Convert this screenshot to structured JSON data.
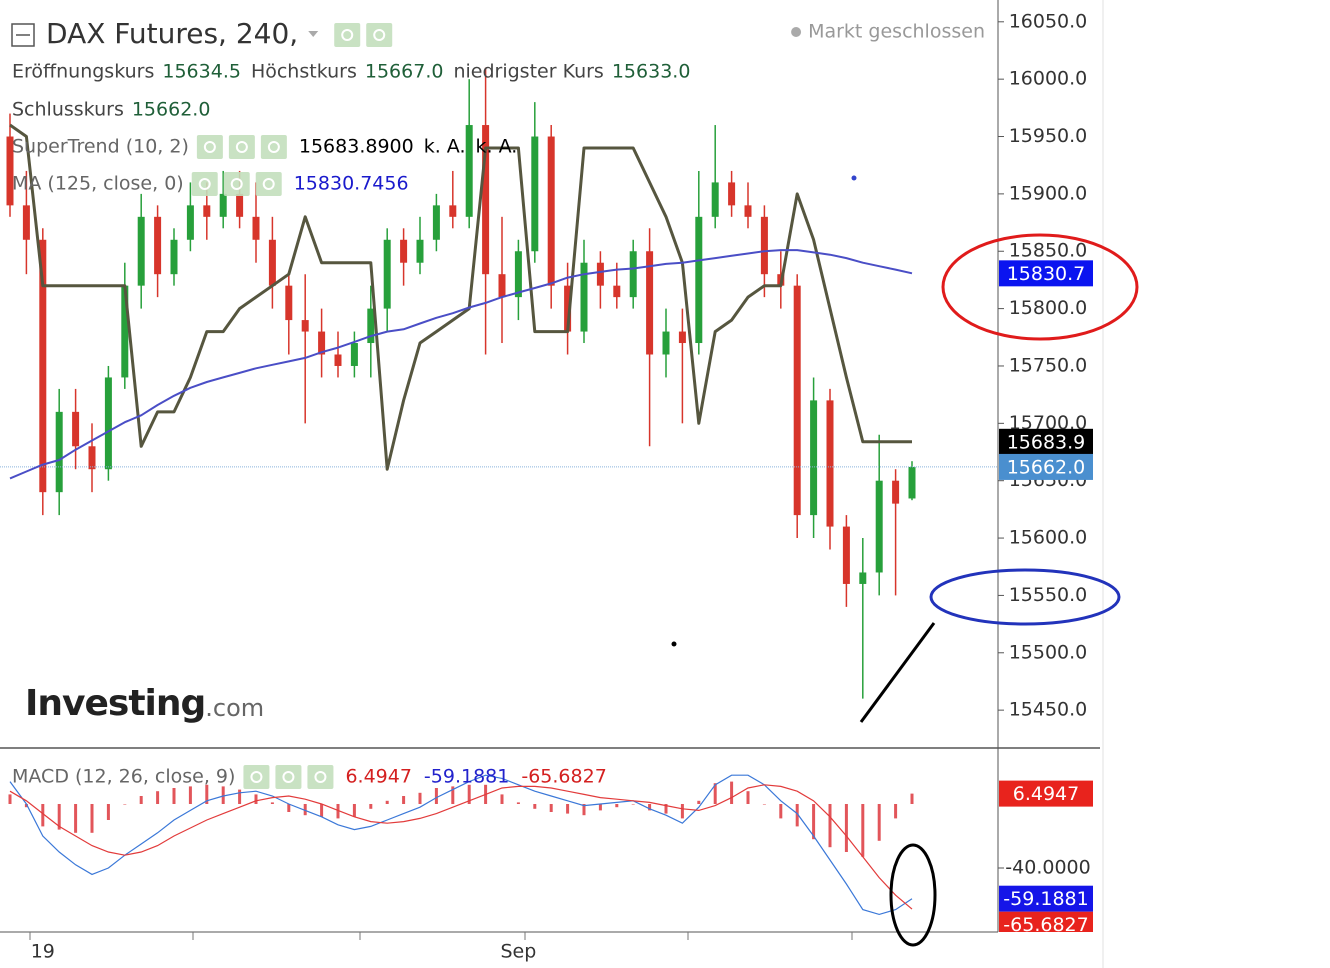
{
  "chart_data": [
    {
      "type": "candlestick",
      "title": "DAX Futures, 240,",
      "status": "Markt geschlossen",
      "ohlc_legend": [
        {
          "label": "Eröffnungskurs",
          "value": "15634.5"
        },
        {
          "label": "Höchstkurs",
          "value": "15667.0"
        },
        {
          "label": "niedrigster Kurs",
          "value": "15633.0"
        },
        {
          "label": "Schlusskurs",
          "value": "15662.0"
        }
      ],
      "categories": [
        null,
        null,
        "19",
        null,
        null,
        null,
        null,
        null,
        null,
        null,
        null,
        null,
        null,
        null,
        null,
        null,
        null,
        null,
        null,
        null,
        null,
        null,
        null,
        null,
        null,
        null,
        null,
        null,
        null,
        null,
        null,
        "Sep",
        null,
        null,
        null,
        null,
        null,
        null,
        null,
        null,
        null,
        null,
        null,
        null,
        null,
        null,
        null,
        null,
        null,
        null,
        null,
        null,
        null,
        null,
        null,
        null
      ],
      "open": [
        15950,
        15890,
        15860,
        15640,
        15710,
        15680,
        15660,
        15740,
        15820,
        15880,
        15830,
        15860,
        15890,
        15880,
        15900,
        15880,
        15860,
        15820,
        15790,
        15780,
        15760,
        15750,
        15770,
        15800,
        15860,
        15840,
        15860,
        15890,
        15880,
        15960,
        15830,
        15810,
        15850,
        15950,
        15820,
        15780,
        15840,
        15820,
        15810,
        15850,
        15760,
        15780,
        15770,
        15880,
        15910,
        15890,
        15880,
        15830,
        15820,
        15620,
        15720,
        15610,
        15560,
        15570,
        15650,
        15634.5
      ],
      "high": [
        15970,
        15920,
        15870,
        15730,
        15730,
        15700,
        15750,
        15840,
        15900,
        15890,
        15870,
        15910,
        15910,
        15920,
        15920,
        15910,
        15880,
        15830,
        15830,
        15800,
        15780,
        15780,
        15820,
        15870,
        15870,
        15880,
        15900,
        15920,
        16000,
        16010,
        15880,
        15860,
        15980,
        15960,
        15840,
        15860,
        15850,
        15840,
        15860,
        15870,
        15800,
        15800,
        15920,
        15960,
        15920,
        15910,
        15890,
        15850,
        15830,
        15740,
        15730,
        15620,
        15600,
        15690,
        15660,
        15667
      ],
      "low": [
        15880,
        15830,
        15620,
        15620,
        15660,
        15640,
        15650,
        15730,
        15800,
        15810,
        15820,
        15850,
        15860,
        15870,
        15870,
        15840,
        15800,
        15760,
        15700,
        15740,
        15740,
        15740,
        15740,
        15780,
        15820,
        15830,
        15850,
        15870,
        15870,
        15760,
        15770,
        15790,
        15840,
        15800,
        15760,
        15770,
        15800,
        15800,
        15800,
        15680,
        15740,
        15700,
        15760,
        15870,
        15880,
        15870,
        15810,
        15800,
        15600,
        15600,
        15590,
        15540,
        15460,
        15550,
        15550,
        15633
      ],
      "close": [
        15890,
        15860,
        15640,
        15710,
        15680,
        15660,
        15740,
        15820,
        15880,
        15830,
        15860,
        15890,
        15880,
        15900,
        15880,
        15860,
        15820,
        15790,
        15780,
        15760,
        15750,
        15770,
        15800,
        15860,
        15840,
        15860,
        15890,
        15880,
        15960,
        15830,
        15810,
        15850,
        15950,
        15820,
        15780,
        15840,
        15820,
        15810,
        15850,
        15760,
        15780,
        15770,
        15880,
        15910,
        15890,
        15880,
        15830,
        15820,
        15620,
        15720,
        15610,
        15560,
        15570,
        15650,
        15630,
        15662
      ],
      "up_color": "#27a03b",
      "down_color": "#d7352b",
      "close_axis_label": "15662.0",
      "close_axis_color": "#4a8fcf",
      "series": [
        {
          "name": "SuperTrend (10, 2)",
          "color": "#56563f",
          "values": [
            15960,
            15950,
            15820,
            15820,
            15820,
            15820,
            15820,
            15820,
            15680,
            15710,
            15710,
            15740,
            15780,
            15780,
            15800,
            15810,
            15820,
            15830,
            15880,
            15840,
            15840,
            15840,
            15840,
            15660,
            15720,
            15770,
            15780,
            15790,
            15800,
            15940,
            15940,
            15940,
            15780,
            15780,
            15780,
            15940,
            15940,
            15940,
            15940,
            15910,
            15880,
            15840,
            15700,
            15780,
            15790,
            15810,
            15820,
            15820,
            15900,
            15860,
            15800,
            15740,
            15684,
            15684,
            15684,
            15683.89
          ],
          "last_label": "15683.8900",
          "extra_labels": [
            "k. A.",
            "k. A."
          ],
          "axis_label": "15683.9",
          "axis_color": "#000000",
          "text_color": "#000000"
        },
        {
          "name": "MA (125, close, 0)",
          "color": "#4a4ec6",
          "values": [
            15652,
            15658,
            15664,
            15668,
            15677,
            15685,
            15693,
            15701,
            15707,
            15716,
            15724,
            15731,
            15736,
            15740,
            15744,
            15748,
            15751,
            15754,
            15757,
            15762,
            15766,
            15771,
            15776,
            15780,
            15782,
            15787,
            15792,
            15796,
            15801,
            15805,
            15810,
            15814,
            15818,
            15822,
            15827,
            15830,
            15832,
            15834,
            15835,
            15837,
            15839,
            15840,
            15842,
            15844,
            15846,
            15848,
            15850,
            15851,
            15851,
            15849,
            15847,
            15844,
            15840,
            15837,
            15834,
            15830.7456
          ],
          "axis_label": "15830.7",
          "axis_color": "#0a14f0",
          "text_color": "#1a1acc"
        }
      ],
      "ylim": [
        15417,
        16069
      ],
      "yticks": [
        {
          "value": 15450,
          "label": "15450.0"
        },
        {
          "value": 15500,
          "label": "15500.0"
        },
        {
          "value": 15550,
          "label": "15550.0"
        },
        {
          "value": 15600,
          "label": "15600.0"
        },
        {
          "value": 15650,
          "label": "15650.0"
        },
        {
          "value": 15700,
          "label": "15700.0"
        },
        {
          "value": 15750,
          "label": "15750.0"
        },
        {
          "value": 15800,
          "label": "15800.0"
        },
        {
          "value": 15850,
          "label": "15850.0"
        },
        {
          "value": 15900,
          "label": "15900.0"
        },
        {
          "value": 15950,
          "label": "15950.0"
        },
        {
          "value": 16000,
          "label": "16000.0"
        },
        {
          "value": 16050,
          "label": "16050.0"
        }
      ],
      "logo": [
        "Investing",
        ".com"
      ]
    },
    {
      "type": "macd",
      "title": "MACD (12, 26, close, 9)",
      "ylim": [
        -80,
        35
      ],
      "yticks": [
        {
          "value": -40,
          "label": "-40.0000"
        }
      ],
      "series": [
        {
          "style": "bar",
          "color": "#e2555a",
          "axis_color": "#e8231d",
          "values": [
            6,
            -2,
            -14,
            -16,
            -18,
            -18,
            -10,
            0,
            5,
            8,
            10,
            11,
            12,
            11,
            9,
            6,
            1,
            -5,
            -7,
            -8,
            -9,
            -8,
            -3,
            2,
            5,
            7,
            10,
            11,
            12,
            12,
            6,
            1,
            -3,
            -5,
            -6,
            -7,
            -4,
            -2,
            0,
            -4,
            -6,
            -9,
            2,
            13,
            14,
            8,
            0,
            -9,
            -14,
            -22,
            -27,
            -30,
            -33,
            -23,
            -9,
            6.4947
          ]
        },
        {
          "style": "line",
          "color": "#3b78d8",
          "axis_color": "#1515e8",
          "values": [
            14,
            0,
            -20,
            -30,
            -38,
            -44,
            -40,
            -32,
            -25,
            -18,
            -10,
            -4,
            2,
            5,
            7,
            8,
            5,
            0,
            -4,
            -8,
            -13,
            -16,
            -14,
            -10,
            -6,
            -2,
            4,
            9,
            14,
            18,
            16,
            12,
            8,
            5,
            2,
            -1,
            0,
            1,
            2,
            -3,
            -7,
            -12,
            -2,
            12,
            18,
            18,
            12,
            2,
            -6,
            -20,
            -35,
            -50,
            -66,
            -69,
            -66,
            -59.1881
          ]
        },
        {
          "style": "line",
          "color": "#e23b3b",
          "axis_color": "#e8231d",
          "values": [
            8,
            2,
            -6,
            -14,
            -20,
            -26,
            -30,
            -32,
            -30,
            -26,
            -20,
            -15,
            -10,
            -6,
            -2,
            2,
            4,
            5,
            3,
            0,
            -4,
            -8,
            -11,
            -12,
            -11,
            -9,
            -6,
            -2,
            2,
            6,
            10,
            11,
            11,
            10,
            8,
            6,
            4,
            3,
            2,
            1,
            -1,
            -3,
            -4,
            -1,
            4,
            10,
            12,
            11,
            8,
            2,
            -8,
            -20,
            -33,
            -46,
            -57,
            -65.6827
          ]
        }
      ]
    }
  ]
}
